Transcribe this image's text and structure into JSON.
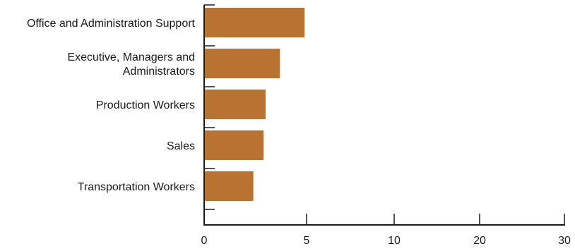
{
  "chart_data": {
    "type": "bar",
    "orientation": "horizontal",
    "categories": [
      [
        "Office and Administration Support"
      ],
      [
        "Executive, Managers and",
        "Administrators"
      ],
      [
        "Production Workers"
      ],
      [
        "Sales"
      ],
      [
        "Transportation Workers"
      ]
    ],
    "values": [
      4.9,
      3.7,
      3.0,
      2.9,
      2.4
    ],
    "x_ticks": [
      0,
      5,
      10,
      20,
      30
    ],
    "bar_color": "#b87333",
    "axis_color": "#1a1a1a",
    "grid": false,
    "title": "",
    "xlabel": "",
    "ylabel": ""
  }
}
